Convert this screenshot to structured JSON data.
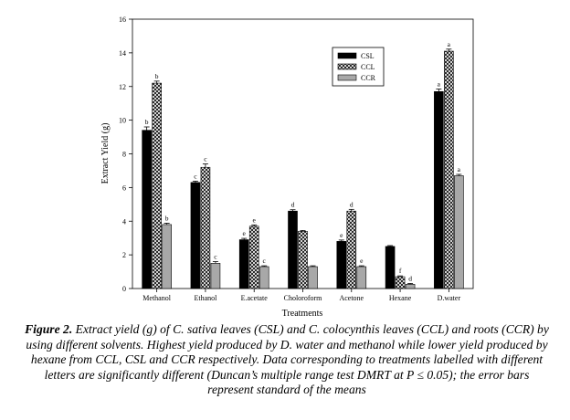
{
  "chart_data": {
    "type": "bar",
    "ylabel": "Extract Yield (g)",
    "xlabel": "Treatments",
    "ylim": [
      0,
      16
    ],
    "yticks": [
      0,
      2,
      4,
      6,
      8,
      10,
      12,
      14,
      16
    ],
    "categories": [
      "Methanol",
      "Ethanol",
      "E.acetate",
      "Choloroform",
      "Acetone",
      "Hexane",
      "D.water"
    ],
    "legend_position": "top-right",
    "grid": false,
    "series": [
      {
        "name": "CSL",
        "fill": "#000000",
        "values": [
          9.4,
          6.3,
          2.9,
          4.6,
          2.8,
          2.5,
          11.7
        ],
        "errors": [
          0.2,
          0.08,
          0.08,
          0.08,
          0.08,
          0.05,
          0.15
        ],
        "letters": [
          "b",
          "c",
          "e",
          "d",
          "e",
          "",
          "a"
        ]
      },
      {
        "name": "CCL",
        "fill": "crosshatch",
        "values": [
          12.2,
          7.2,
          3.7,
          3.4,
          4.6,
          0.7,
          14.1
        ],
        "errors": [
          0.12,
          0.2,
          0.08,
          0.05,
          0.1,
          0.05,
          0.12
        ],
        "letters": [
          "b",
          "c",
          "e",
          "",
          "d",
          "f",
          "a"
        ]
      },
      {
        "name": "CCR",
        "fill": "#a8a8a8",
        "values": [
          3.8,
          1.5,
          1.3,
          1.3,
          1.3,
          0.25,
          6.7
        ],
        "errors": [
          0.08,
          0.1,
          0.05,
          0.05,
          0.05,
          0.05,
          0.08
        ],
        "letters": [
          "b",
          "c",
          "c",
          "",
          "e",
          "d",
          "a"
        ]
      }
    ]
  },
  "caption": {
    "label": "Figure 2.",
    "text": "Extract yield (g) of C. sativa leaves (CSL) and C. colocynthis leaves (CCL) and roots (CCR) by using different solvents. Highest yield produced by D. water and methanol while lower yield produced by hexane from CCL, CSL and CCR respectively. Data corresponding to treatments labelled with different letters are significantly different (Duncan’s multiple range test DMRT at P ≤ 0.05); the error bars represent standard of the means"
  }
}
